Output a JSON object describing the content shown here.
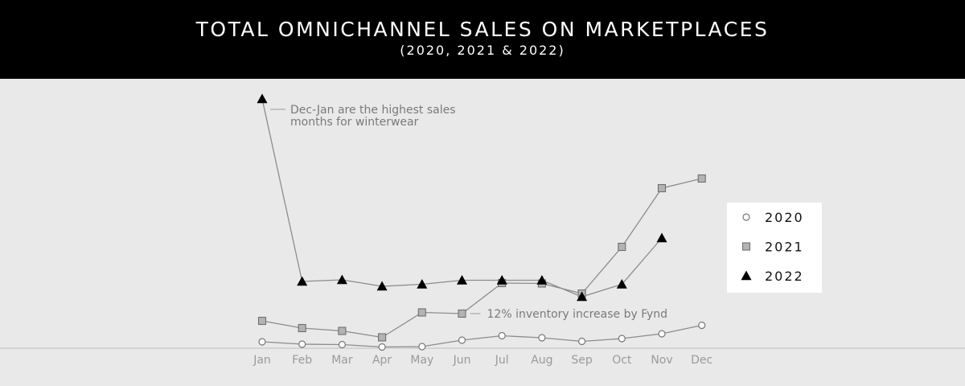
{
  "header": {
    "title": "TOTAL OMNICHANNEL SALES ON MARKETPLACES",
    "subtitle": "(2020, 2021 & 2022)"
  },
  "colors": {
    "background": "#e9e9e9",
    "header_bg": "#000000",
    "s2020": "#ffffff",
    "s2021": "#b3b3b3",
    "s2022": "#000000",
    "line": "#8c8c8c"
  },
  "chart_data": {
    "type": "line",
    "title": "TOTAL OMNICHANNEL SALES ON MARKETPLACES",
    "subtitle": "(2020, 2021 & 2022)",
    "xlabel": "",
    "ylabel": "",
    "categories": [
      "Jan",
      "Feb",
      "Mar",
      "Apr",
      "May",
      "Jun",
      "Jul",
      "Aug",
      "Sep",
      "Oct",
      "Nov",
      "Dec"
    ],
    "series": [
      {
        "name": "2020",
        "marker": "circle",
        "values": [
          8,
          5,
          4.5,
          1.5,
          2,
          10,
          15.5,
          13,
          8.5,
          12,
          18,
          28.5
        ]
      },
      {
        "name": "2021",
        "marker": "square",
        "values": [
          34,
          25,
          21.5,
          13.5,
          44.5,
          43,
          81,
          80.5,
          68,
          126,
          199,
          211
        ]
      },
      {
        "name": "2022",
        "marker": "triangle",
        "values": [
          310,
          83,
          85,
          77,
          79.5,
          84.5,
          84.5,
          84.5,
          64,
          79.5,
          137,
          null
        ]
      }
    ],
    "ylim": [
      0,
      320
    ],
    "y_axis_visible": false,
    "grid": false,
    "legend": {
      "position": "right",
      "entries": [
        "2020",
        "2021",
        "2022"
      ]
    },
    "annotations": [
      {
        "text": "Dec-Jan are the highest sales months for winterwear",
        "lines": [
          "Dec-Jan are the highest sales",
          "months for winterwear"
        ],
        "series": "2022",
        "category": "Jan"
      },
      {
        "text": "12% inventory increase by Fynd",
        "series": "2021",
        "category": "Jun"
      }
    ]
  }
}
